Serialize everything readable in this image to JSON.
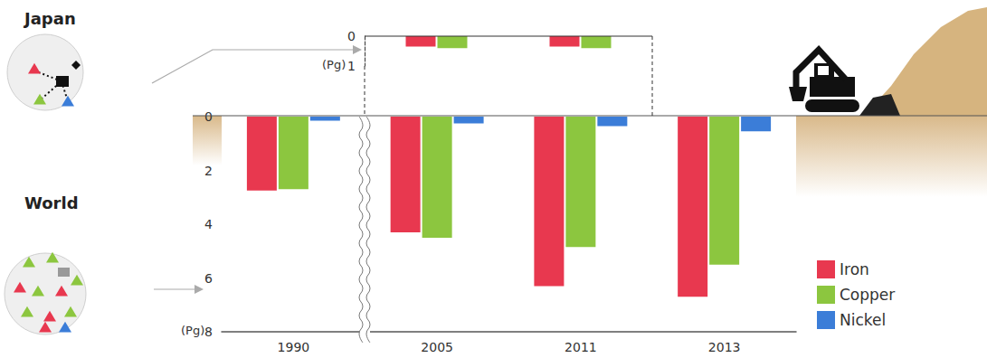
{
  "chart_data": [
    {
      "type": "bar",
      "title": "World",
      "categories": [
        "1990",
        "2005",
        "2011",
        "2013"
      ],
      "series": [
        {
          "name": "Iron",
          "color": "#e8384f",
          "values": [
            2.75,
            4.3,
            6.3,
            6.7
          ]
        },
        {
          "name": "Copper",
          "color": "#8cc63f",
          "values": [
            2.7,
            4.5,
            4.85,
            5.5
          ]
        },
        {
          "name": "Nickel",
          "color": "#3b7dd8",
          "values": [
            0.15,
            0.25,
            0.35,
            0.55
          ]
        }
      ],
      "ylim": [
        8,
        0
      ],
      "yticks": [
        0,
        2,
        4,
        6,
        8
      ],
      "ylabel": "(Pg)",
      "legend": "right",
      "grid": false
    },
    {
      "type": "bar",
      "title": "Japan",
      "categories": [
        null,
        null
      ],
      "series": [
        {
          "name": "Iron",
          "color": "#e8384f",
          "values": [
            0.35,
            0.35
          ]
        },
        {
          "name": "Copper",
          "color": "#8cc63f",
          "values": [
            0.4,
            0.4
          ]
        }
      ],
      "ylim": [
        1,
        0
      ],
      "yticks": [
        0,
        1
      ],
      "ylabel": "(Pg)",
      "tick_labels": "y",
      "grid": false
    }
  ]
}
